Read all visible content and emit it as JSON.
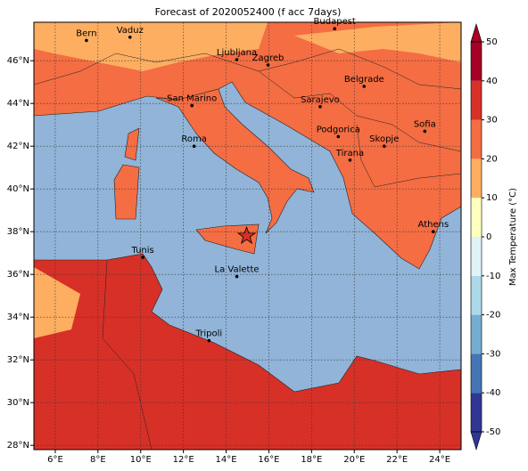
{
  "title": "Forecast of 2020052400 (f acc 7days)",
  "map": {
    "lon_lim": [
      5,
      25
    ],
    "lat_lim": [
      27.8,
      47.8
    ],
    "lon_ticks": [
      {
        "value": 6,
        "label": "6°E"
      },
      {
        "value": 8,
        "label": "8°E"
      },
      {
        "value": 10,
        "label": "10°E"
      },
      {
        "value": 12,
        "label": "12°E"
      },
      {
        "value": 14,
        "label": "14°E"
      },
      {
        "value": 16,
        "label": "16°E"
      },
      {
        "value": 18,
        "label": "18°E"
      },
      {
        "value": 20,
        "label": "20°E"
      },
      {
        "value": 22,
        "label": "22°E"
      },
      {
        "value": 24,
        "label": "24°E"
      }
    ],
    "lat_ticks": [
      {
        "value": 28,
        "label": "28°N"
      },
      {
        "value": 30,
        "label": "30°N"
      },
      {
        "value": 32,
        "label": "32°N"
      },
      {
        "value": 34,
        "label": "34°N"
      },
      {
        "value": 36,
        "label": "36°N"
      },
      {
        "value": 38,
        "label": "38°N"
      },
      {
        "value": 40,
        "label": "40°N"
      },
      {
        "value": 42,
        "label": "42°N"
      },
      {
        "value": 44,
        "label": "44°N"
      },
      {
        "value": 46,
        "label": "46°N"
      }
    ],
    "cities": [
      {
        "name": "Bern",
        "lon": 7.46,
        "lat": 46.95
      },
      {
        "name": "Vaduz",
        "lon": 9.5,
        "lat": 47.1
      },
      {
        "name": "Budapest",
        "lon": 19.08,
        "lat": 47.5
      },
      {
        "name": "Ljubljana",
        "lon": 14.5,
        "lat": 46.05
      },
      {
        "name": "Zagreb",
        "lon": 15.96,
        "lat": 45.8
      },
      {
        "name": "Belgrade",
        "lon": 20.46,
        "lat": 44.8
      },
      {
        "name": "San Marino",
        "lon": 12.4,
        "lat": 43.9
      },
      {
        "name": "Sarajevo",
        "lon": 18.4,
        "lat": 43.85
      },
      {
        "name": "Sofia",
        "lon": 23.3,
        "lat": 42.7
      },
      {
        "name": "Roma",
        "lon": 12.5,
        "lat": 42.0
      },
      {
        "name": "Podgorica",
        "lon": 19.25,
        "lat": 42.45
      },
      {
        "name": "Skopje",
        "lon": 21.4,
        "lat": 42.0
      },
      {
        "name": "Tirana",
        "lon": 19.8,
        "lat": 41.35
      },
      {
        "name": "Athens",
        "lon": 23.7,
        "lat": 38.0
      },
      {
        "name": "Tunis",
        "lon": 10.1,
        "lat": 36.8
      },
      {
        "name": "La Valette",
        "lon": 14.5,
        "lat": 35.9
      },
      {
        "name": "Tripoli",
        "lon": 13.2,
        "lat": 32.9
      }
    ],
    "star": {
      "lon": 14.96,
      "lat": 37.8,
      "color": "#d73027"
    }
  },
  "colorbar": {
    "label": "Max Temperature (°C)",
    "lim": [
      -50,
      50
    ],
    "ticks": [
      -50,
      -40,
      -30,
      -20,
      -10,
      0,
      10,
      20,
      30,
      40,
      50
    ],
    "colors": [
      "#313695",
      "#4575b4",
      "#74add1",
      "#abd9e9",
      "#e0f3f8",
      "#ffffbf",
      "#fdae61",
      "#f46d43",
      "#d73027",
      "#a50026"
    ]
  }
}
